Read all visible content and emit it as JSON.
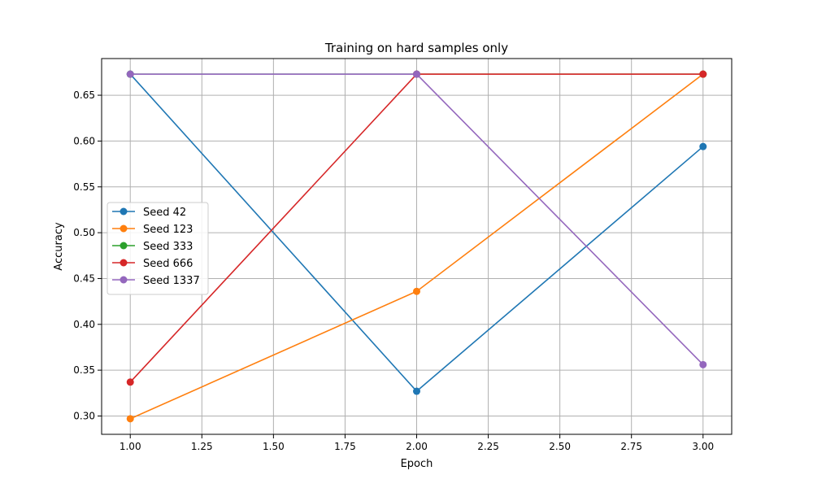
{
  "chart_data": {
    "type": "line",
    "title": "Training on hard samples only",
    "xlabel": "Epoch",
    "ylabel": "Accuracy",
    "x": [
      1,
      2,
      3
    ],
    "xlim": [
      0.9,
      3.1
    ],
    "ylim": [
      0.28,
      0.69
    ],
    "xticks": [
      "1.00",
      "1.25",
      "1.50",
      "1.75",
      "2.00",
      "2.25",
      "2.50",
      "2.75",
      "3.00"
    ],
    "xtick_values": [
      1.0,
      1.25,
      1.5,
      1.75,
      2.0,
      2.25,
      2.5,
      2.75,
      3.0
    ],
    "yticks": [
      "0.30",
      "0.35",
      "0.40",
      "0.45",
      "0.50",
      "0.55",
      "0.60",
      "0.65"
    ],
    "ytick_values": [
      0.3,
      0.35,
      0.4,
      0.45,
      0.5,
      0.55,
      0.6,
      0.65
    ],
    "grid": true,
    "legend_position": "center-left",
    "series": [
      {
        "name": "Seed 42",
        "color": "#1f77b4",
        "values": [
          0.673,
          0.327,
          0.594
        ]
      },
      {
        "name": "Seed 123",
        "color": "#ff7f0e",
        "values": [
          0.297,
          0.436,
          0.673
        ]
      },
      {
        "name": "Seed 333",
        "color": "#2ca02c",
        "values": [
          0.673,
          0.673,
          0.673
        ]
      },
      {
        "name": "Seed 666",
        "color": "#d62728",
        "values": [
          0.337,
          0.673,
          0.673
        ]
      },
      {
        "name": "Seed 1337",
        "color": "#9467bd",
        "values": [
          0.673,
          0.673,
          0.356
        ]
      }
    ]
  }
}
